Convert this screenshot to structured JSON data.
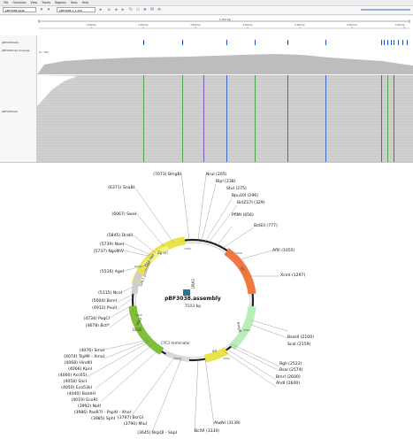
{
  "igv": {
    "menu": [
      "File",
      "Genomes",
      "View",
      "Tracks",
      "Regions",
      "Tools",
      "Help"
    ],
    "genome": "pBF3038.fasta",
    "locus": "pBF3038:1-7,103",
    "ruler_center_label": "7,103 bp",
    "ruler_ticks": [
      "1,000 bp",
      "2,000 bp",
      "3,000 bp",
      "4,000 bp",
      "5,000 bp",
      "6,000 bp",
      "7,000 bp"
    ],
    "track_names": [
      "pBF3038.fasta",
      "pBF3038.bam Coverage",
      "pBF3038.bam"
    ],
    "coverage_range": "[0 - 100]"
  },
  "plasmid": {
    "name": "pBF3038.assembly",
    "length": "7103 bp",
    "features": [
      "Zp ori",
      "GAL1 promoter",
      "URA3",
      "AmpR",
      "ori",
      "CYC1 terminator",
      "HIS3",
      "ori",
      "LEU2",
      "M13 fwd"
    ],
    "tick_labels": [
      "7000",
      "1000",
      "2000",
      "3000",
      "4000",
      "5000",
      "6000"
    ],
    "sites_left": [
      "(7073)  BmgBI",
      "(6371)  SnaBI",
      "(6067)  SwaI",
      "(5845)  DraIII",
      "(5739)  NaeI",
      "(5737)  NgoMIV",
      "(5516)  AgeI",
      "(5115)  NcoI",
      "(5004)  BsmI",
      "(4912)  PvuII",
      "(4734)  PaqCI",
      "(4678)  BclI*",
      "(4076)  SmaI",
      "(4074)  TspMI - XmaI",
      "(4068)  HindIII",
      "(4066)  KpnI",
      "(4060)  Acc65I",
      "(4058)  SacI",
      "(4050)  Eco53kI",
      "(4040)  BamHI",
      "(4019)  EcoRI",
      "(3992)  NotI",
      "(3986)  PaeR7I - PspXI - XhoI",
      "(3985)  SphI",
      "(3797)  BsrGI",
      "(3790)  MluI",
      "(3645)  BspQI - SapI"
    ],
    "sites_right": [
      "NruI  (205)",
      "BlpI  (238)",
      "StuI  (275)",
      "Bpu10I  (296)",
      "BstZ17I  (329)",
      "PflMI  (656)",
      "BstEII  (777)",
      "AflII  (1055)",
      "XcmI  (1297)",
      "BsaHI  (2100)",
      "ScaI  (2159)",
      "BglI  (2522)",
      "BsaI  (2574)",
      "BmrI  (2600)",
      "AhdI  (2640)",
      "AlwNI  (3139)",
      "BclVI  (3330)"
    ]
  }
}
